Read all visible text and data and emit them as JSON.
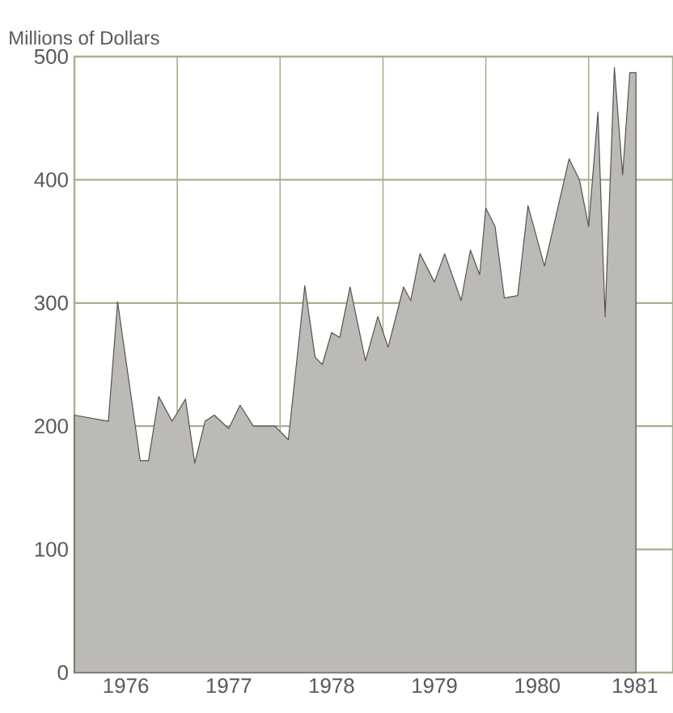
{
  "chart_data": {
    "type": "area",
    "ylabel": "Millions of Dollars",
    "x": [
      1976.0,
      1976.33,
      1976.42,
      1976.64,
      1976.72,
      1976.82,
      1976.95,
      1977.08,
      1977.17,
      1977.27,
      1977.36,
      1977.5,
      1977.61,
      1977.74,
      1977.95,
      1978.08,
      1978.24,
      1978.34,
      1978.41,
      1978.5,
      1978.58,
      1978.68,
      1978.83,
      1978.95,
      1979.05,
      1979.2,
      1979.27,
      1979.36,
      1979.5,
      1979.6,
      1979.76,
      1979.85,
      1979.94,
      1980.0,
      1980.09,
      1980.18,
      1980.31,
      1980.41,
      1980.57,
      1980.81,
      1980.91,
      1981.0,
      1981.09,
      1981.16,
      1981.25,
      1981.33,
      1981.4,
      1981.46
    ],
    "series": [
      {
        "color": "#57524c",
        "values": [
          209,
          204,
          301,
          172,
          172,
          224,
          204,
          222,
          170,
          204,
          209,
          198,
          217,
          200,
          200,
          189,
          314,
          256,
          250,
          276,
          272,
          313,
          253,
          289,
          264,
          313,
          302,
          340,
          317,
          340,
          302,
          343,
          323,
          377,
          362,
          304,
          306,
          379,
          330,
          417,
          400,
          362,
          455,
          289,
          491,
          404,
          487,
          487
        ]
      }
    ],
    "xlim": [
      1976,
      1981.82
    ],
    "ylim": [
      0,
      500
    ],
    "xticks": [
      {
        "value": 1976.5,
        "label": "1976"
      },
      {
        "value": 1977,
        "label": null
      },
      {
        "value": 1977.5,
        "label": "1977"
      },
      {
        "value": 1978,
        "label": null
      },
      {
        "value": 1978.5,
        "label": "1978"
      },
      {
        "value": 1979,
        "label": null
      },
      {
        "value": 1979.5,
        "label": "1979"
      },
      {
        "value": 1980,
        "label": null
      },
      {
        "value": 1980.5,
        "label": "1980"
      },
      {
        "value": 1981,
        "label": null
      },
      {
        "value": 1981.45,
        "label": "1981"
      }
    ],
    "yticks": [
      0,
      100,
      200,
      300,
      400,
      500
    ],
    "grid": true
  }
}
